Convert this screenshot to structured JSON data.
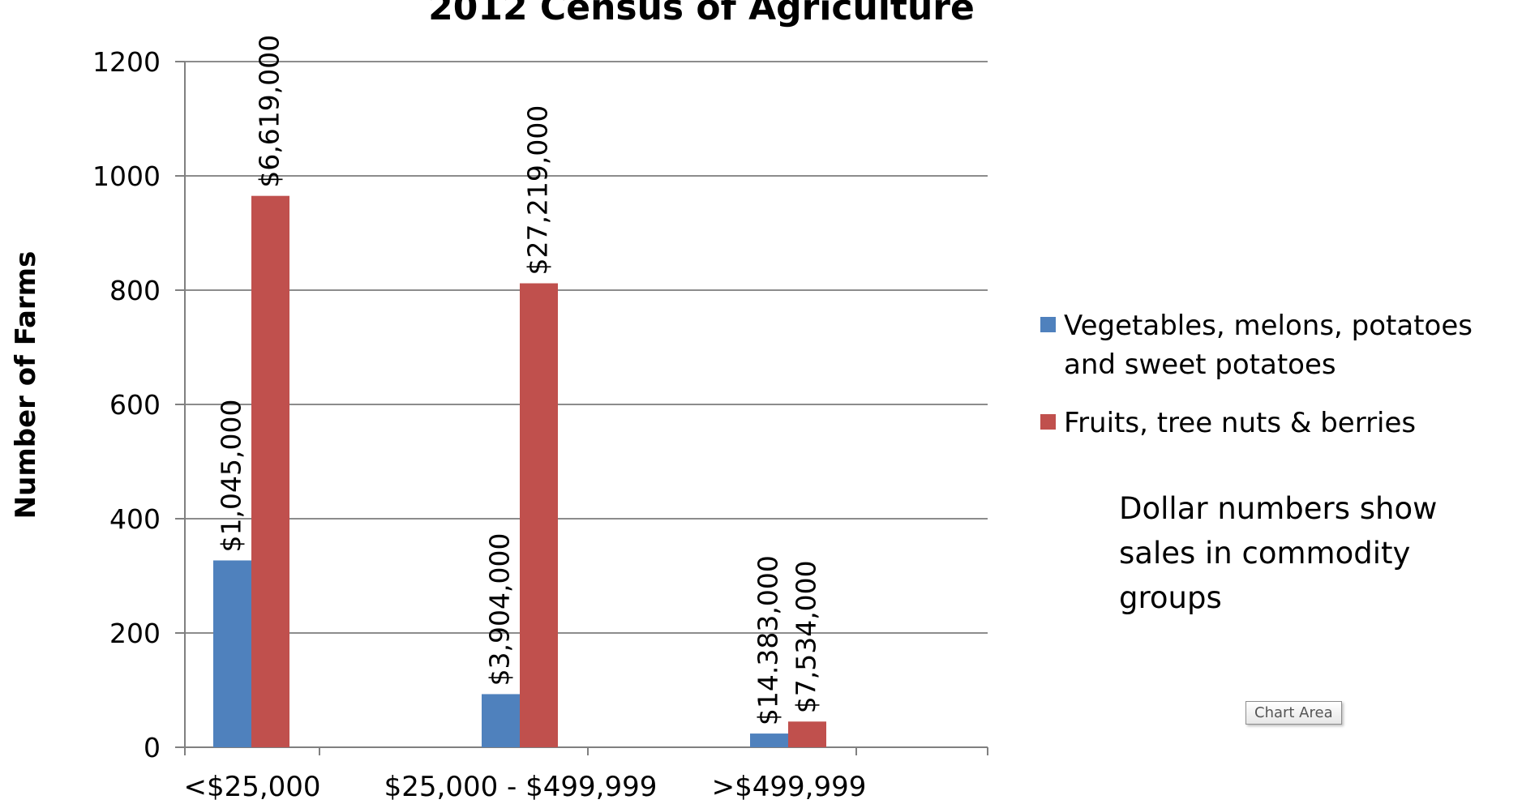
{
  "chart_data": {
    "type": "bar",
    "title": "2012 Census of Agriculture",
    "xlabel": "",
    "ylabel": "Number of Farms",
    "categories": [
      "<$25,000",
      "$25,000 - $499,999",
      ">$499,999"
    ],
    "ylim": [
      0,
      1200
    ],
    "yticks": [
      0,
      200,
      400,
      600,
      800,
      1000,
      1200
    ],
    "grid": true,
    "legend_position": "right",
    "series": [
      {
        "name": "Vegetables, melons, potatoes and sweet potatoes",
        "color": "#4f81bd",
        "values": [
          327,
          93,
          24
        ],
        "labels": [
          "$1,045,000",
          "$3,904,000",
          "$14.383,000"
        ]
      },
      {
        "name": "Fruits, tree nuts & berries",
        "color": "#c0504d",
        "values": [
          965,
          812,
          45
        ],
        "labels": [
          "$6,619,000",
          "$27,219,000",
          "$7,534,000"
        ]
      }
    ],
    "annotation": "Dollar numbers show\nsales in commodity\ngroups"
  },
  "tooltip": {
    "label": "Chart Area"
  }
}
